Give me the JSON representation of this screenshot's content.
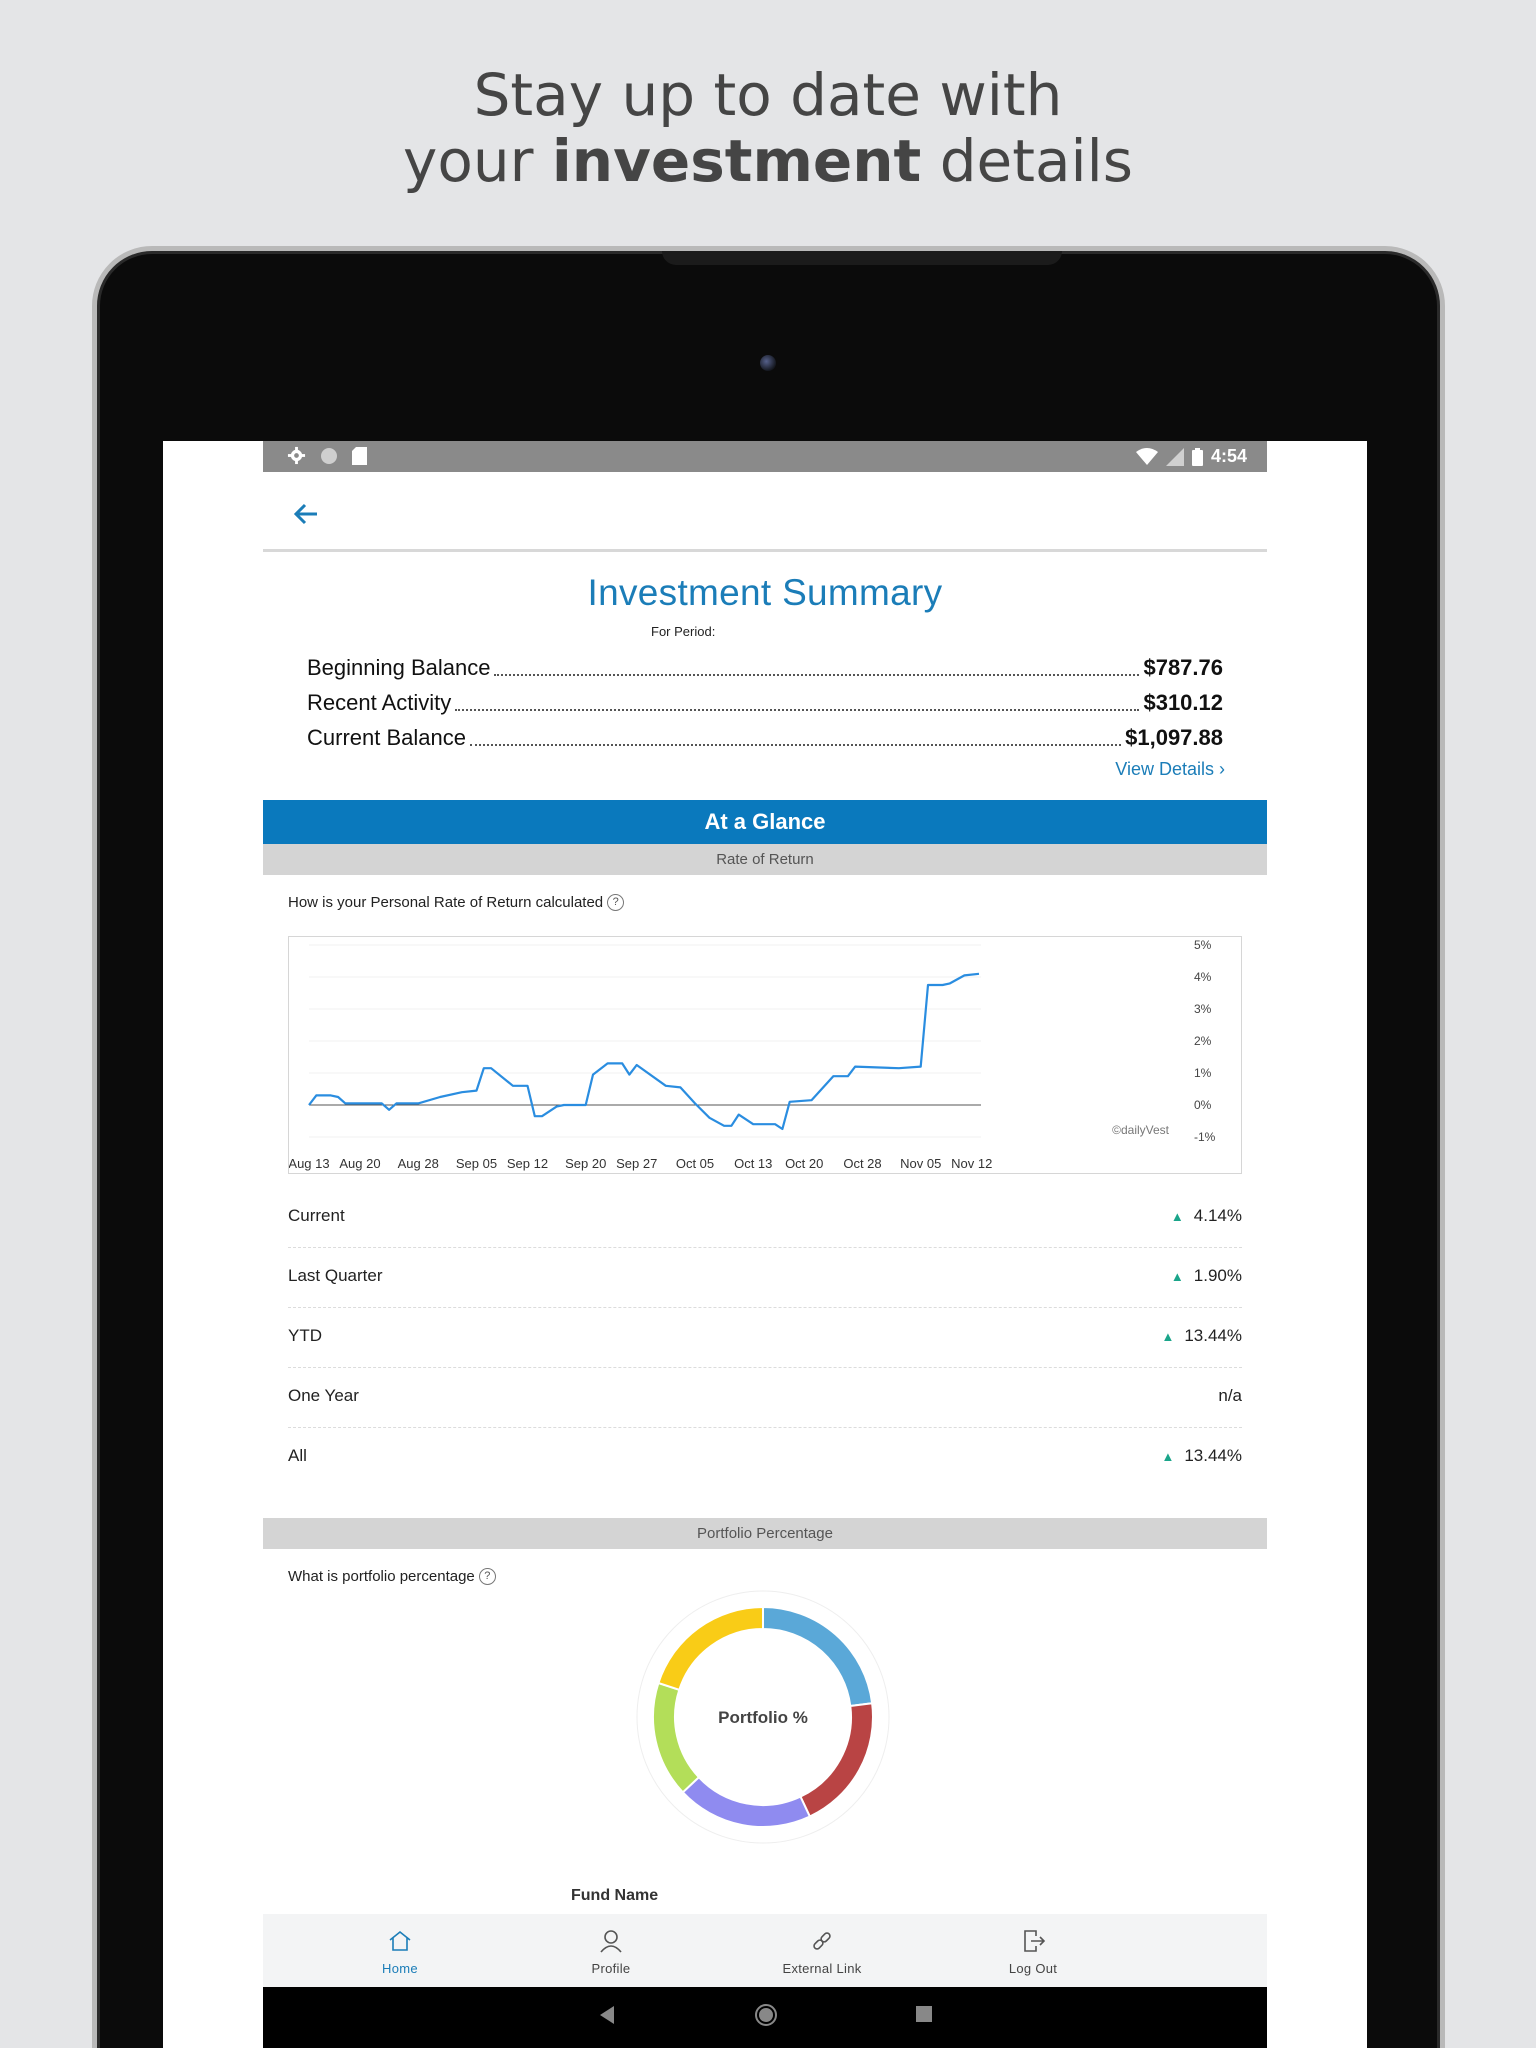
{
  "headline": {
    "line1": "Stay up to date with",
    "line2_pre": "your ",
    "line2_bold": "investment",
    "line2_post": " details"
  },
  "status_bar": {
    "time": "4:54"
  },
  "summary": {
    "title": "Investment Summary",
    "period_label": "For Period:",
    "rows": [
      {
        "label": "Beginning Balance",
        "value": "$787.76"
      },
      {
        "label": "Recent Activity",
        "value": "$310.12"
      },
      {
        "label": "Current Balance",
        "value": "$1,097.88"
      }
    ],
    "view_details": "View Details",
    "view_details_chevron": "›"
  },
  "glance": {
    "header": "At a Glance",
    "rate_section": "Rate of Return",
    "rate_question": "How is your Personal Rate of Return calculated",
    "help_glyph": "?",
    "returns": [
      {
        "label": "Current",
        "value": "4.14%",
        "up": true
      },
      {
        "label": "Last Quarter",
        "value": "1.90%",
        "up": true
      },
      {
        "label": "YTD",
        "value": "13.44%",
        "up": true
      },
      {
        "label": "One Year",
        "value": "n/a",
        "up": false
      },
      {
        "label": "All",
        "value": "13.44%",
        "up": true
      }
    ],
    "portfolio_section": "Portfolio Percentage",
    "portfolio_question": "What is portfolio percentage",
    "donut_center": "Portfolio %",
    "fund_name_label": "Fund Name"
  },
  "chart_data": {
    "type": "line",
    "watermark": "©dailyVest",
    "x_ticks": [
      "Aug 13",
      "Aug 20",
      "Aug 28",
      "Sep 05",
      "Sep 12",
      "Sep 20",
      "Sep 27",
      "Oct 05",
      "Oct 13",
      "Oct 20",
      "Oct 28",
      "Nov 05",
      "Nov 12"
    ],
    "y_ticks": [
      "5%",
      "4%",
      "3%",
      "2%",
      "1%",
      "0%",
      "-1%"
    ],
    "ylim": [
      -1,
      5
    ],
    "grid": true,
    "series_color": "#2a8de0",
    "series": [
      {
        "x": [
          "2018-08-13",
          "2018-08-14",
          "2018-08-16",
          "2018-08-17",
          "2018-08-18",
          "2018-08-20",
          "2018-08-23",
          "2018-08-24",
          "2018-08-25",
          "2018-08-28",
          "2018-08-31",
          "2018-09-03",
          "2018-09-05",
          "2018-09-06",
          "2018-09-07",
          "2018-09-10",
          "2018-09-12",
          "2018-09-13",
          "2018-09-14",
          "2018-09-16",
          "2018-09-17",
          "2018-09-20",
          "2018-09-21",
          "2018-09-23",
          "2018-09-25",
          "2018-09-26",
          "2018-09-27",
          "2018-10-01",
          "2018-10-03",
          "2018-10-05",
          "2018-10-07",
          "2018-10-09",
          "2018-10-10",
          "2018-10-11",
          "2018-10-13",
          "2018-10-16",
          "2018-10-17",
          "2018-10-18",
          "2018-10-21",
          "2018-10-24",
          "2018-10-26",
          "2018-10-27",
          "2018-11-02",
          "2018-11-05",
          "2018-11-06",
          "2018-11-08",
          "2018-11-09",
          "2018-11-11",
          "2018-11-13"
        ],
        "y": [
          0.0,
          0.3,
          0.3,
          0.25,
          0.05,
          0.05,
          0.05,
          -0.15,
          0.05,
          0.05,
          0.25,
          0.4,
          0.45,
          1.15,
          1.15,
          0.6,
          0.6,
          -0.35,
          -0.35,
          -0.05,
          0.0,
          0.0,
          0.95,
          1.3,
          1.3,
          0.95,
          1.25,
          0.6,
          0.55,
          0.05,
          -0.4,
          -0.65,
          -0.65,
          -0.3,
          -0.6,
          -0.6,
          -0.75,
          0.1,
          0.15,
          0.9,
          0.9,
          1.2,
          1.15,
          1.2,
          3.75,
          3.75,
          3.8,
          4.05,
          4.1
        ]
      }
    ]
  },
  "portfolio_chart": {
    "type": "pie",
    "slices": [
      {
        "value": 23,
        "color": "#5aa8d8"
      },
      {
        "value": 20,
        "color": "#b94444"
      },
      {
        "value": 20,
        "color": "#8f8bf0"
      },
      {
        "value": 17,
        "color": "#b3de59"
      },
      {
        "value": 20,
        "color": "#f9cc17"
      }
    ]
  },
  "bottom_nav": [
    {
      "label": "Home",
      "icon": "home-icon",
      "active": true
    },
    {
      "label": "Profile",
      "icon": "profile-icon",
      "active": false
    },
    {
      "label": "External Link",
      "icon": "link-icon",
      "active": false
    },
    {
      "label": "Log Out",
      "icon": "logout-icon",
      "active": false
    }
  ],
  "colors": {
    "accent": "#1b7db8",
    "glance_bar": "#0a79bd",
    "up_arrow": "#1aa58a"
  }
}
